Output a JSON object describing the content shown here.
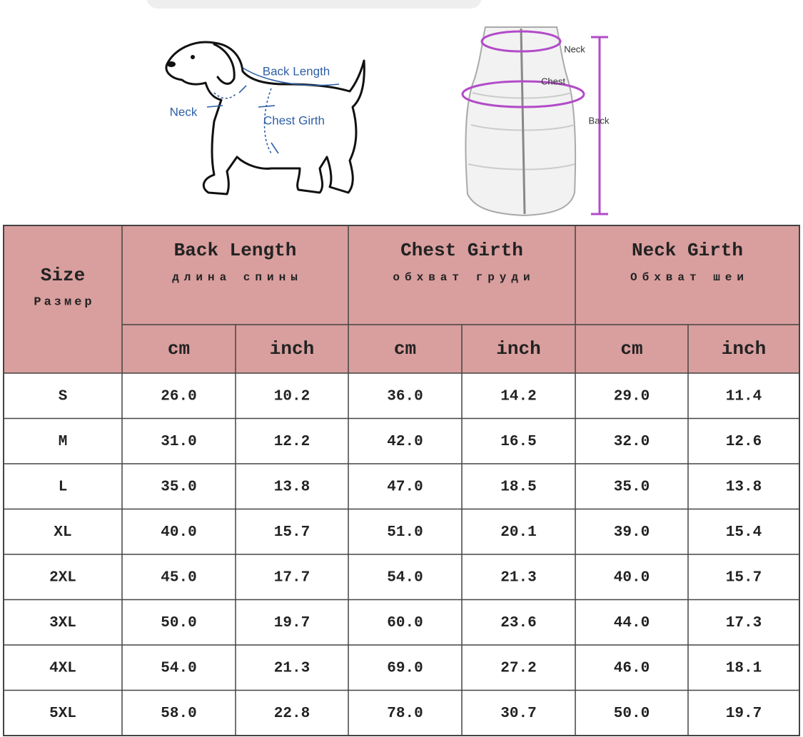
{
  "illustrations": {
    "dog": {
      "back_length": "Back Length",
      "neck": "Neck",
      "chest_girth": "Chest Girth"
    },
    "vest": {
      "neck": "Neck",
      "chest": "Chest",
      "back": "Back"
    }
  },
  "table": {
    "size_header": {
      "en": "Size",
      "ru": "Размер"
    },
    "groups": [
      {
        "en": "Back Length",
        "ru": "длина спины"
      },
      {
        "en": "Chest Girth",
        "ru": "обхват груди"
      },
      {
        "en": "Neck Girth",
        "ru": "Обхват шеи"
      }
    ],
    "units": [
      "cm",
      "inch",
      "cm",
      "inch",
      "cm",
      "inch"
    ],
    "rows": [
      [
        "S",
        "26.0",
        "10.2",
        "36.0",
        "14.2",
        "29.0",
        "11.4"
      ],
      [
        "M",
        "31.0",
        "12.2",
        "42.0",
        "16.5",
        "32.0",
        "12.6"
      ],
      [
        "L",
        "35.0",
        "13.8",
        "47.0",
        "18.5",
        "35.0",
        "13.8"
      ],
      [
        "XL",
        "40.0",
        "15.7",
        "51.0",
        "20.1",
        "39.0",
        "15.4"
      ],
      [
        "2XL",
        "45.0",
        "17.7",
        "54.0",
        "21.3",
        "40.0",
        "15.7"
      ],
      [
        "3XL",
        "50.0",
        "19.7",
        "60.0",
        "23.6",
        "44.0",
        "17.3"
      ],
      [
        "4XL",
        "54.0",
        "21.3",
        "69.0",
        "27.2",
        "46.0",
        "18.1"
      ],
      [
        "5XL",
        "58.0",
        "22.8",
        "78.0",
        "30.7",
        "50.0",
        "19.7"
      ]
    ]
  }
}
